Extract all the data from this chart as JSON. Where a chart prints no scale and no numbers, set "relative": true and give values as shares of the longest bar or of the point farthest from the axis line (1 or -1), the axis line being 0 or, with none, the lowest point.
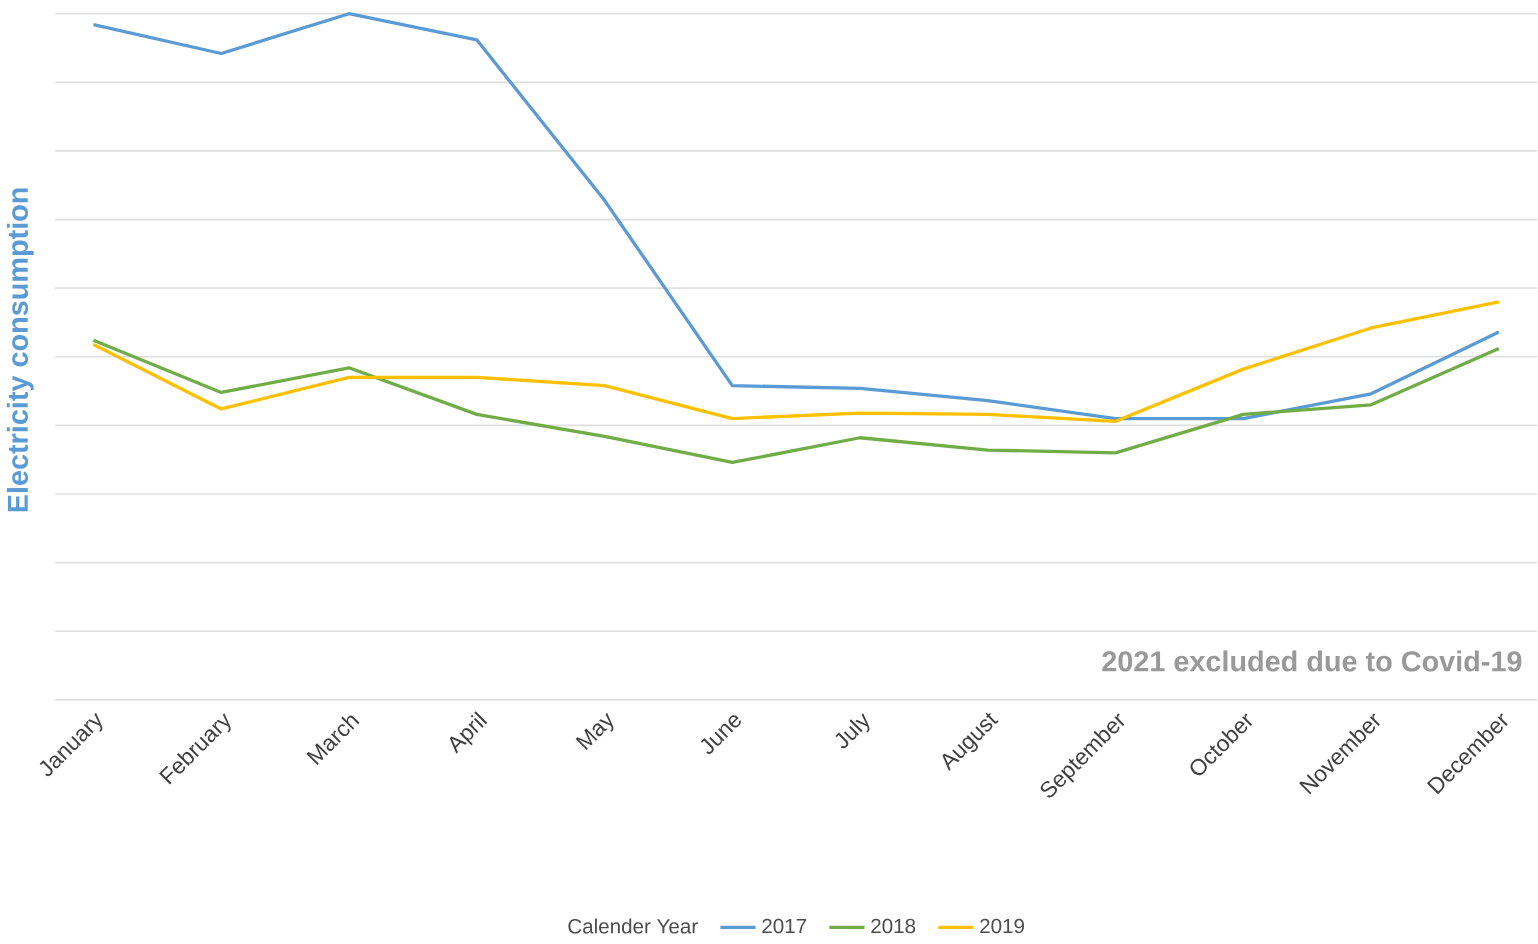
{
  "chart_data": {
    "type": "line",
    "relative": true,
    "ylabel": "Electricity consumption",
    "legend_title": "Calender Year",
    "legend": "bottom",
    "grid": "y",
    "annotations": [
      "2021 excluded due to Covid-19"
    ],
    "categories": [
      "January",
      "February",
      "March",
      "April",
      "May",
      "June",
      "July",
      "August",
      "September",
      "October",
      "November",
      "December"
    ],
    "series": [
      {
        "name": "2017",
        "color": "#5b9bd5",
        "values": [
          0.984,
          0.942,
          1,
          0.962,
          0.728,
          0.458,
          0.454,
          0.436,
          0.41,
          0.41,
          0.446,
          0.536
        ]
      },
      {
        "name": "2018",
        "color": "#70ad47",
        "values": [
          0.524,
          0.448,
          0.484,
          0.416,
          0.384,
          0.346,
          0.382,
          0.364,
          0.36,
          0.416,
          0.43,
          0.512
        ]
      },
      {
        "name": "2019",
        "color": "#ffc000",
        "values": [
          0.518,
          0.424,
          0.47,
          0.47,
          0.458,
          0.41,
          0.418,
          0.416,
          0.406,
          0.482,
          0.542,
          0.58
        ]
      }
    ]
  }
}
